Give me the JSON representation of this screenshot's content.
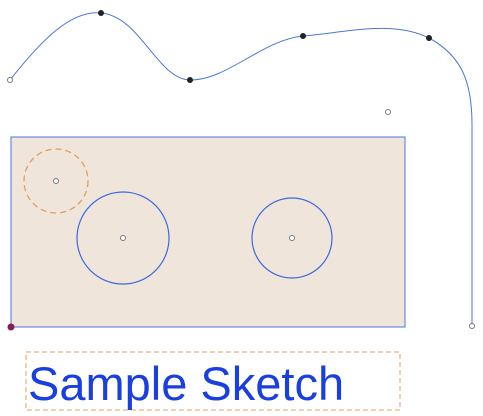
{
  "sketch": {
    "label": "Sample Sketch"
  }
}
